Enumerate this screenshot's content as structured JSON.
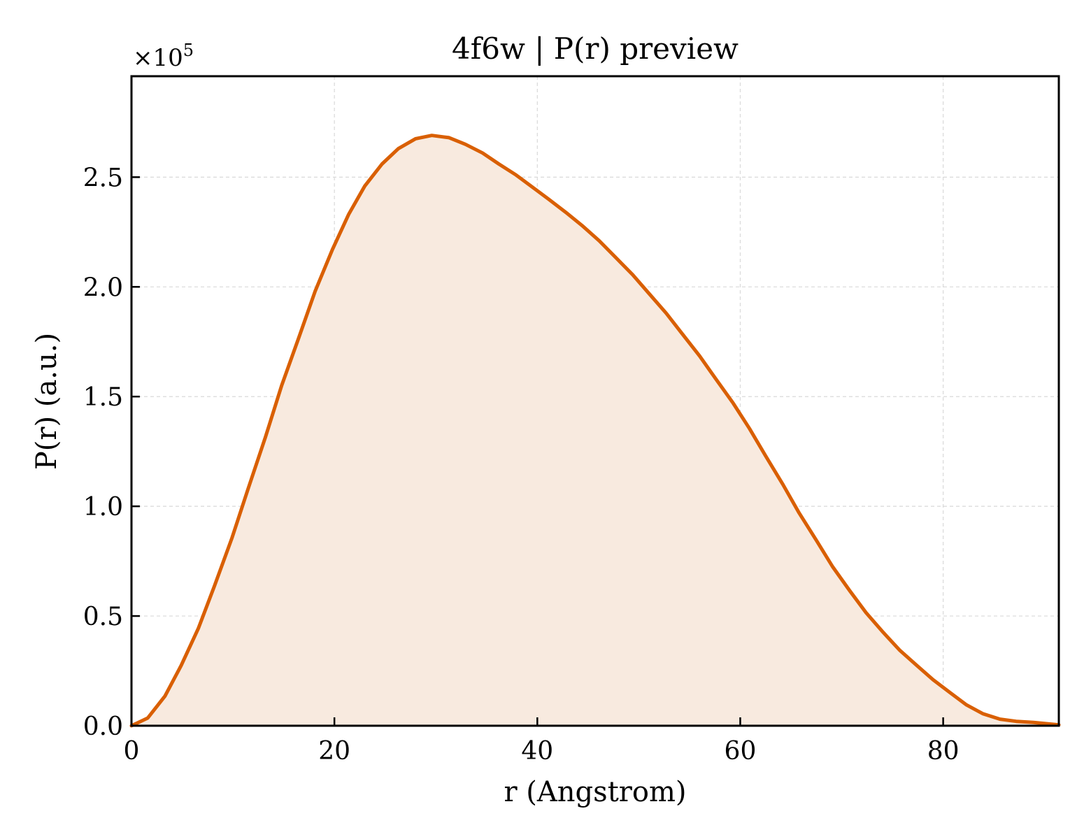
{
  "chart_data": {
    "type": "area",
    "title": "4f6w | P(r) preview",
    "xlabel": "r (Angstrom)",
    "ylabel": "P(r) (a.u.)",
    "y_multiplier_label": "×10",
    "y_multiplier_exponent": "5",
    "xlim": [
      0,
      91.4
    ],
    "ylim": [
      0,
      2.96
    ],
    "x_ticks": [
      0,
      20,
      40,
      60,
      80
    ],
    "x_tick_labels": [
      "0",
      "20",
      "40",
      "60",
      "80"
    ],
    "y_ticks": [
      0.0,
      0.5,
      1.0,
      1.5,
      2.0,
      2.5
    ],
    "y_tick_labels": [
      "0.0",
      "0.5",
      "1.0",
      "1.5",
      "2.0",
      "2.5"
    ],
    "grid": true,
    "colors": {
      "line": "#d95f02",
      "fill": "#f8eadf",
      "grid": "#d9d9d9",
      "axes": "#000000"
    },
    "series": [
      {
        "x": [
          0,
          1.6,
          3.3,
          4.9,
          6.6,
          8.2,
          9.9,
          11.5,
          13.2,
          14.8,
          16.5,
          18.1,
          19.8,
          21.4,
          23.0,
          24.7,
          26.3,
          28.0,
          29.6,
          31.3,
          32.9,
          34.6,
          36.2,
          37.9,
          39.5,
          41.1,
          42.8,
          44.4,
          46.1,
          47.7,
          49.4,
          51.0,
          52.7,
          54.3,
          56.0,
          57.6,
          59.3,
          60.9,
          62.5,
          64.2,
          65.8,
          67.5,
          69.1,
          70.8,
          72.4,
          74.1,
          75.7,
          77.4,
          79.0,
          80.7,
          82.3,
          83.9,
          85.6,
          87.2,
          88.9,
          90.5,
          91.4
        ],
        "y": [
          0.0,
          0.035,
          0.135,
          0.275,
          0.445,
          0.64,
          0.855,
          1.08,
          1.315,
          1.55,
          1.77,
          1.98,
          2.17,
          2.33,
          2.46,
          2.56,
          2.63,
          2.675,
          2.69,
          2.68,
          2.65,
          2.61,
          2.56,
          2.51,
          2.455,
          2.4,
          2.34,
          2.28,
          2.21,
          2.135,
          2.055,
          1.97,
          1.88,
          1.785,
          1.685,
          1.58,
          1.47,
          1.355,
          1.23,
          1.1,
          0.97,
          0.845,
          0.725,
          0.615,
          0.515,
          0.425,
          0.345,
          0.275,
          0.21,
          0.15,
          0.095,
          0.055,
          0.03,
          0.02,
          0.015,
          0.008,
          0.004
        ]
      }
    ]
  }
}
